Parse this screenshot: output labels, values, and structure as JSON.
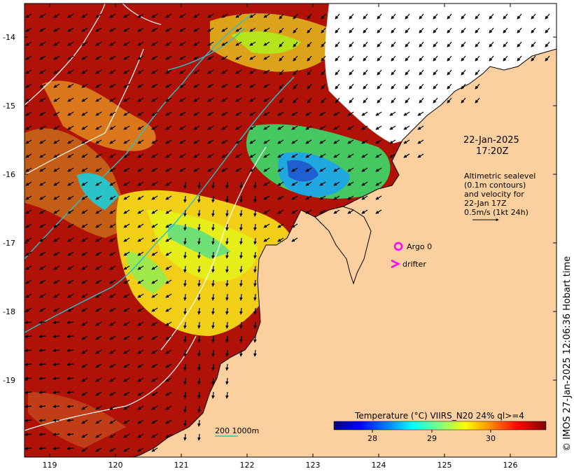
{
  "map": {
    "latitude_ticks": [
      "-14",
      "-15",
      "-16",
      "-17",
      "-18",
      "-19"
    ],
    "longitude_ticks": [
      "119",
      "120",
      "121",
      "122",
      "123",
      "124",
      "125",
      "126"
    ],
    "lat_range": [
      -20.1,
      -13.5
    ],
    "lon_range": [
      118.6,
      126.7
    ]
  },
  "annotation": {
    "date": "22-Jan-2025",
    "time": "17:20Z",
    "lines": [
      "Altimetric sealevel",
      "(0.1m contours)",
      "and velocity for",
      "22-Jan 17Z",
      "0.5m/s (1kt 24h)"
    ]
  },
  "legend": {
    "argo_label": "Argo 0",
    "drifter_label": "drifter",
    "argo_color": "#ff00ff",
    "drifter_color": "#ff00ff",
    "bathymetry_label": "200  1000m",
    "bathymetry_color": "#2bc0c8"
  },
  "colorbar": {
    "title": "Temperature (°C) VIIRS_N20 24% ql>=4",
    "tick_labels": [
      "28",
      "29",
      "30"
    ],
    "colors": [
      "#00007f",
      "#0000ff",
      "#007fff",
      "#00ffff",
      "#7fff7f",
      "#ffff00",
      "#ff7f00",
      "#ff0000",
      "#7f0000"
    ]
  },
  "colors": {
    "land": "#fbcf9e",
    "warm_water": "#b01208",
    "coastline": "#000000",
    "contour": "#ffffff"
  },
  "credit": "© IMOS 27-Jan-2025 12:06:36 Hobart time"
}
